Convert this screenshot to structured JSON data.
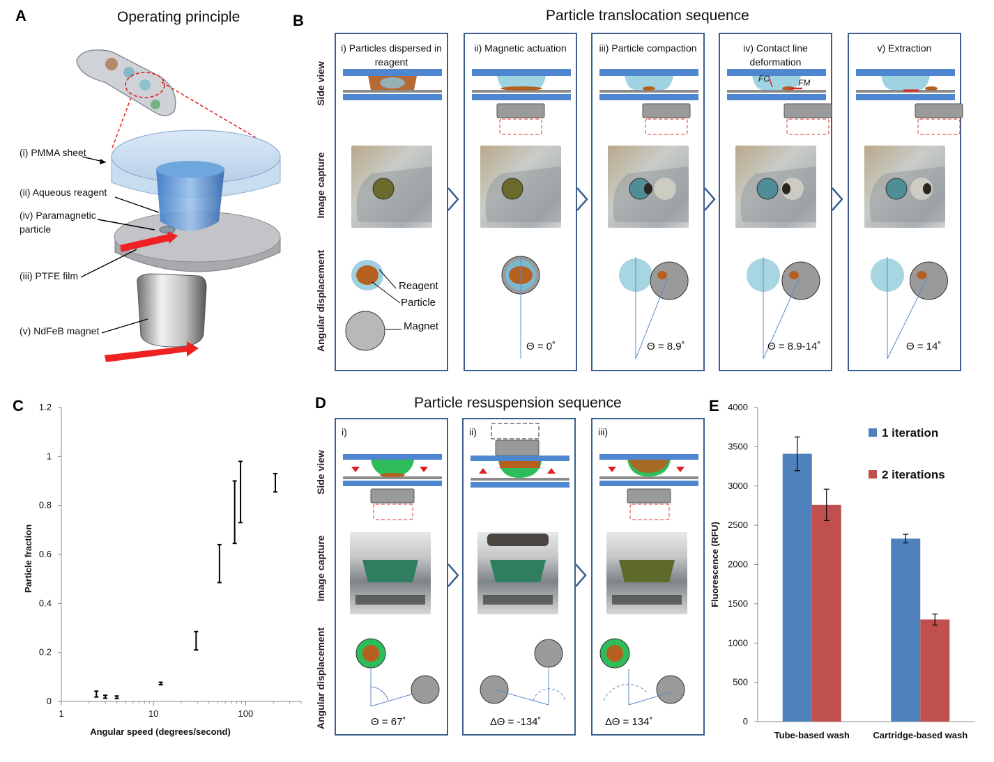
{
  "panelA": {
    "letter": "A",
    "title": "Operating principle",
    "labels": {
      "pmma": "(i) PMMA sheet",
      "reagent": "(ii) Aqueous reagent",
      "particle": "(iv) Paramagnetic particle",
      "ptfe": "(iii) PTFE film",
      "magnet": "(v) NdFeB magnet"
    }
  },
  "panelB": {
    "letter": "B",
    "title": "Particle translocation sequence",
    "row_labels": [
      "Side view",
      "Image capture",
      "Angular displacement"
    ],
    "steps": [
      {
        "title": "i) Particles dispersed in reagent",
        "theta": ""
      },
      {
        "title": "ii) Magnetic actuation",
        "theta": "Θ = 0˚"
      },
      {
        "title": "iii) Particle compaction",
        "theta": "Θ = 8.9˚"
      },
      {
        "title": "iv) Contact line deformation",
        "theta": "Θ = 8.9-14˚"
      },
      {
        "title": "v) Extraction",
        "theta": "Θ = 14˚"
      }
    ],
    "legend": {
      "reagent": "Reagent",
      "particle": "Particle",
      "magnet": "Magnet"
    },
    "force_labels": {
      "fc": "F",
      "fc_sub": "C",
      "fm": "F",
      "fm_sub": "M"
    }
  },
  "panelC": {
    "letter": "C",
    "chart_data": {
      "type": "scatter",
      "xlabel": "Angular speed (degrees/second)",
      "ylabel": "Particle fraction",
      "xscale": "log",
      "xlim": [
        1,
        400
      ],
      "ylim": [
        0,
        1.2
      ],
      "xticks": [
        "1",
        "10",
        "100"
      ],
      "yticks": [
        "0",
        "0.2",
        "0.4",
        "0.6",
        "0.8",
        "1",
        "1.2"
      ],
      "points": [
        {
          "x": 2.4,
          "low": 0.018,
          "high": 0.042
        },
        {
          "x": 3.0,
          "low": 0.013,
          "high": 0.025
        },
        {
          "x": 4.0,
          "low": 0.012,
          "high": 0.022
        },
        {
          "x": 12,
          "low": 0.068,
          "high": 0.078
        },
        {
          "x": 29,
          "low": 0.21,
          "high": 0.285
        },
        {
          "x": 52,
          "low": 0.485,
          "high": 0.64
        },
        {
          "x": 76,
          "low": 0.645,
          "high": 0.9
        },
        {
          "x": 88,
          "low": 0.73,
          "high": 0.98
        },
        {
          "x": 210,
          "low": 0.855,
          "high": 0.93
        }
      ]
    }
  },
  "panelD": {
    "letter": "D",
    "title": "Particle resuspension sequence",
    "row_labels": [
      "Side view",
      "Image capture",
      "Angular displacement"
    ],
    "steps": [
      {
        "title": "i)",
        "theta": "Θ = 67˚"
      },
      {
        "title": "ii)",
        "theta": "ΔΘ = -134˚"
      },
      {
        "title": "iii)",
        "theta": "ΔΘ = 134˚"
      }
    ]
  },
  "panelE": {
    "letter": "E",
    "chart_data": {
      "type": "bar",
      "categories": [
        "Tube-based wash",
        "Cartridge-based wash"
      ],
      "series": [
        {
          "name": "1 iteration",
          "values": [
            3410,
            2330
          ],
          "errors": [
            215,
            55
          ],
          "color": "#4f81bd"
        },
        {
          "name": "2 iterations",
          "values": [
            2760,
            1300
          ],
          "errors": [
            200,
            70
          ],
          "color": "#c0504d"
        }
      ],
      "ylabel": "Fluorescence (RFU)",
      "ylim": [
        0,
        4000
      ],
      "yticks": [
        "0",
        "500",
        "1000",
        "1500",
        "2000",
        "2500",
        "3000",
        "3500",
        "4000"
      ],
      "legend": "top-right"
    }
  }
}
